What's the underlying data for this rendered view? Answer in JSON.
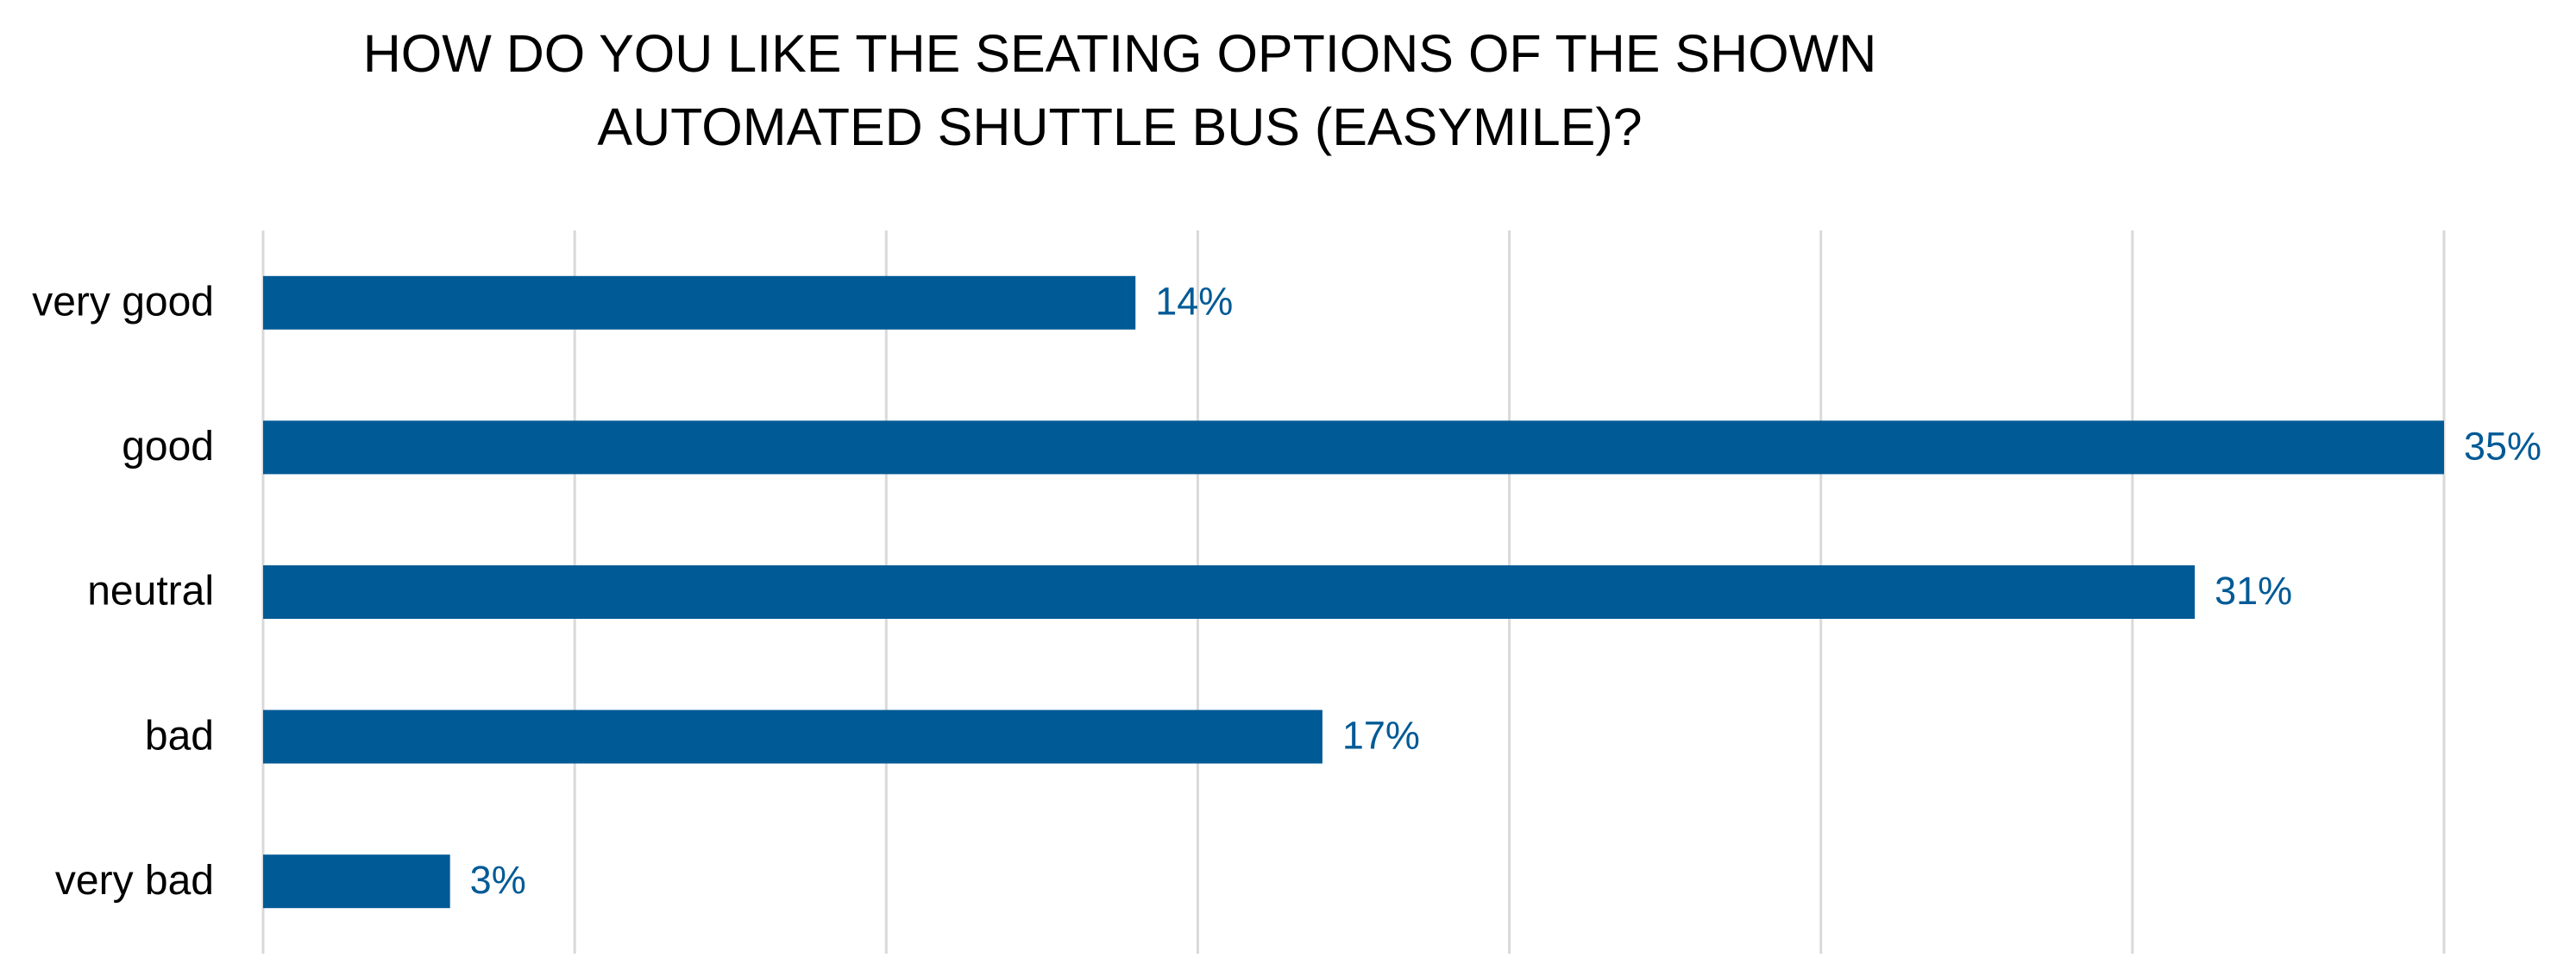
{
  "chart_data": {
    "type": "bar",
    "orientation": "horizontal",
    "title": [
      "HOW DO YOU LIKE THE SEATING OPTIONS OF THE SHOWN",
      "AUTOMATED SHUTTLE BUS (EASYMILE)?"
    ],
    "categories": [
      "very good",
      "good",
      "neutral",
      "bad",
      "very bad"
    ],
    "values": [
      14,
      35,
      31,
      17,
      3
    ],
    "value_labels": [
      "14%",
      "35%",
      "31%",
      "17%",
      "3%"
    ],
    "color": "#005a96",
    "xlim": [
      0,
      35
    ],
    "xticks": [
      0,
      5,
      10,
      15,
      20,
      25,
      30,
      35
    ],
    "grid": true
  }
}
